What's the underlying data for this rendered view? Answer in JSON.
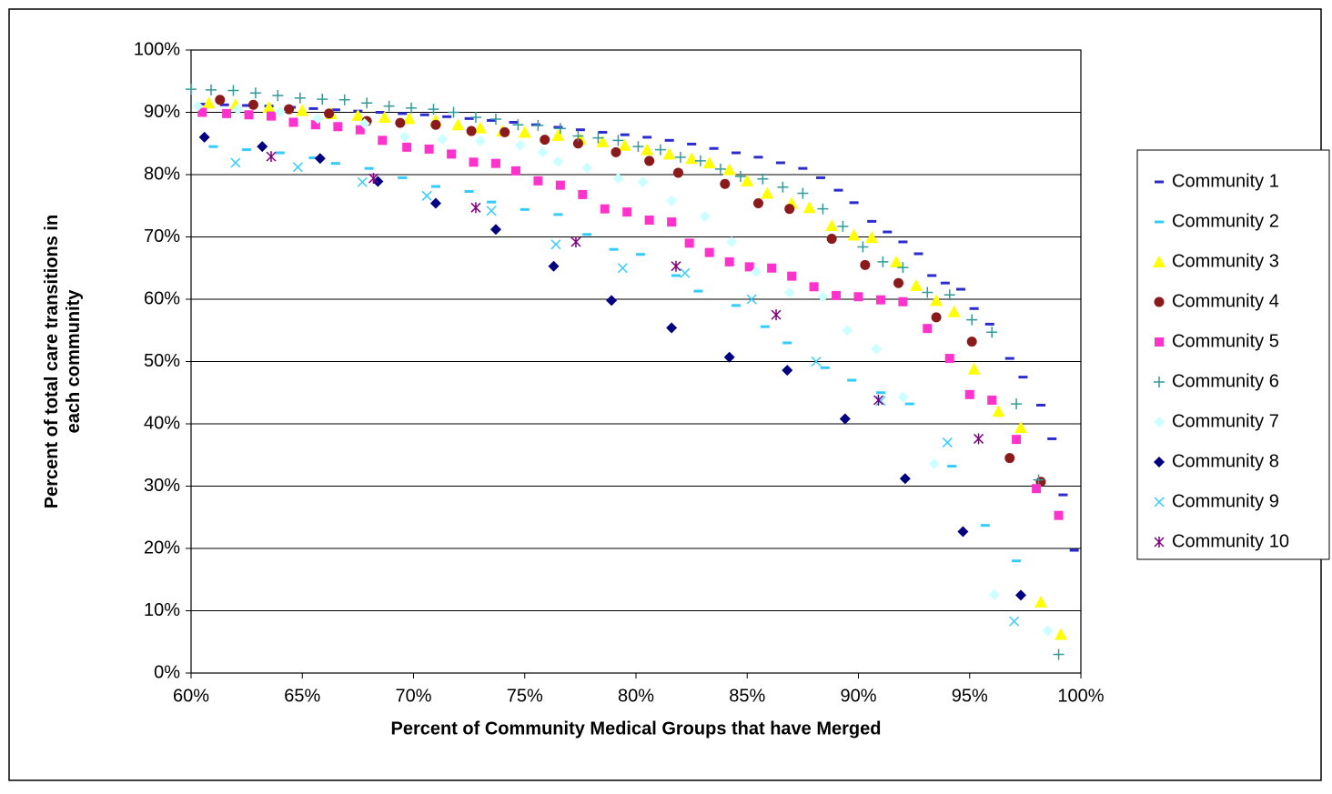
{
  "chart_data": {
    "type": "scatter",
    "x_label": "Percent of Community Medical Groups that have Merged",
    "y_label": "Percent of total care transitions in each community",
    "xlim": [
      60,
      100
    ],
    "ylim": [
      0,
      100
    ],
    "xticks": [
      {
        "value": 60,
        "label": "60%"
      },
      {
        "value": 65,
        "label": "65%"
      },
      {
        "value": 70,
        "label": "70%"
      },
      {
        "value": 75,
        "label": "75%"
      },
      {
        "value": 80,
        "label": "80%"
      },
      {
        "value": 85,
        "label": "85%"
      },
      {
        "value": 90,
        "label": "90%"
      },
      {
        "value": 95,
        "label": "95%"
      },
      {
        "value": 100,
        "label": "100%"
      }
    ],
    "yticks": [
      {
        "value": 0,
        "label": "0%"
      },
      {
        "value": 10,
        "label": "10%"
      },
      {
        "value": 20,
        "label": "20%"
      },
      {
        "value": 30,
        "label": "30%"
      },
      {
        "value": 40,
        "label": "40%"
      },
      {
        "value": 50,
        "label": "50%"
      },
      {
        "value": 60,
        "label": "60%"
      },
      {
        "value": 70,
        "label": "70%"
      },
      {
        "value": 80,
        "label": "80%"
      },
      {
        "value": 90,
        "label": "90%"
      },
      {
        "value": 100,
        "label": "100%"
      }
    ],
    "grid": true,
    "legend": "right",
    "series": [
      {
        "name": "Community 1",
        "color": "#2b2bd0",
        "marker": "dash",
        "x": [
          60.5,
          61.5,
          62.5,
          63.5,
          64.5,
          65.5,
          66.5,
          67.5,
          68.5,
          69.5,
          70.5,
          71.5,
          72.5,
          73.5,
          74.5,
          75.5,
          76.5,
          77.5,
          78.5,
          79.5,
          80.5,
          81.5,
          82.5,
          83.5,
          84.5,
          85.5,
          86.5,
          87.5,
          88.3,
          89.1,
          89.8,
          90.6,
          91.3,
          92,
          92.7,
          93.3,
          93.9,
          94.6,
          95.2,
          95.9,
          96.8,
          97.4,
          98.2,
          98.7,
          99.2,
          99.7
        ],
        "values": [
          91.3,
          91.2,
          91.1,
          91,
          90.8,
          90.6,
          90.4,
          90.2,
          90,
          89.8,
          89.6,
          89.3,
          89,
          88.7,
          88.4,
          88,
          87.6,
          87.2,
          86.8,
          86.4,
          86,
          85.5,
          84.9,
          84.2,
          83.5,
          82.8,
          81.9,
          81,
          79.5,
          77.5,
          75.5,
          72.5,
          70.8,
          69.2,
          67.3,
          63.8,
          62.6,
          61.6,
          58.5,
          56,
          50.5,
          47.5,
          43,
          37.6,
          28.6,
          19.7
        ]
      },
      {
        "name": "Community 2",
        "color": "#33ccff",
        "marker": "dash",
        "x": [
          61,
          62.5,
          64,
          65.5,
          66.5,
          68,
          69.5,
          71,
          72.5,
          73.5,
          75,
          76.5,
          77.8,
          79,
          80.2,
          81.8,
          82.8,
          84.5,
          85.8,
          86.8,
          88.5,
          89.7,
          91,
          92.3,
          94.2,
          95.7,
          97.1
        ],
        "values": [
          84.5,
          84,
          83.5,
          82.7,
          81.8,
          81,
          79.5,
          78.1,
          77.3,
          75.6,
          74.4,
          73.6,
          70.4,
          68,
          67.2,
          63.8,
          61.3,
          59,
          55.6,
          53,
          49,
          47,
          45,
          43.2,
          33.2,
          23.7,
          18
        ]
      },
      {
        "name": "Community 3",
        "color": "#ffff00",
        "marker": "triangle",
        "x": [
          60.8,
          62,
          63.5,
          65,
          66.3,
          67.5,
          68.7,
          69.8,
          71,
          72,
          73,
          74,
          75,
          76.5,
          77.5,
          78.5,
          79.5,
          80.5,
          81.5,
          82.5,
          83.3,
          84.2,
          85,
          85.9,
          87,
          87.8,
          88.8,
          89.8,
          90.6,
          91.7,
          92.6,
          93.5,
          94.3,
          95.2,
          96.3,
          97.3,
          98.2,
          99.1
        ],
        "values": [
          91.5,
          91.2,
          90.8,
          90.3,
          89.8,
          89.5,
          89.2,
          89,
          88.7,
          88,
          87.5,
          87,
          86.8,
          86.3,
          85.7,
          85.3,
          84.7,
          84,
          83.3,
          82.6,
          81.9,
          80.8,
          79,
          77,
          75.4,
          74.7,
          71.8,
          70.3,
          69.9,
          66,
          62.2,
          59.8,
          58,
          48.8,
          42,
          39.4,
          11.4,
          6.2
        ]
      },
      {
        "name": "Community 4",
        "color": "#8b1a1a",
        "marker": "circle",
        "x": [
          61.3,
          62.8,
          64.4,
          66.2,
          67.9,
          69.4,
          71,
          72.6,
          74.1,
          75.9,
          77.4,
          79.1,
          80.6,
          81.9,
          84,
          85.5,
          86.9,
          88.8,
          90.3,
          91.8,
          93.5,
          95.1,
          96.8,
          98.2
        ],
        "values": [
          92,
          91.2,
          90.5,
          89.8,
          88.6,
          88.3,
          88,
          87,
          86.8,
          85.6,
          85,
          83.6,
          82.2,
          80.3,
          78.5,
          75.4,
          74.5,
          69.7,
          65.5,
          62.6,
          57.1,
          53.2,
          34.5,
          30.7
        ]
      },
      {
        "name": "Community 5",
        "color": "#ff33cc",
        "marker": "square",
        "x": [
          60.5,
          61.6,
          62.6,
          63.6,
          64.6,
          65.6,
          66.6,
          67.6,
          68.6,
          69.7,
          70.7,
          71.7,
          72.7,
          73.7,
          74.6,
          75.6,
          76.6,
          77.6,
          78.6,
          79.6,
          80.6,
          81.6,
          82.4,
          83.3,
          84.2,
          85.1,
          86.1,
          87,
          88,
          89,
          90,
          91,
          92,
          93.1,
          94.1,
          95,
          96,
          97.1,
          98,
          99
        ],
        "values": [
          90,
          89.8,
          89.6,
          89.4,
          88.4,
          88,
          87.7,
          87.2,
          85.5,
          84.4,
          84.1,
          83.3,
          82,
          81.8,
          80.6,
          79,
          78.3,
          76.8,
          74.5,
          74,
          72.7,
          72.4,
          69,
          67.5,
          66,
          65.2,
          65,
          63.7,
          62,
          60.6,
          60.4,
          59.9,
          59.6,
          55.3,
          50.5,
          44.7,
          43.8,
          37.5,
          29.6,
          25.3
        ]
      },
      {
        "name": "Community 6",
        "color": "#339999",
        "marker": "plus",
        "x": [
          60,
          60.9,
          61.9,
          62.9,
          63.9,
          64.9,
          65.9,
          66.9,
          67.9,
          68.9,
          69.9,
          70.9,
          71.8,
          72.8,
          73.7,
          74.7,
          75.6,
          76.6,
          77.4,
          78.3,
          79.2,
          80.1,
          81.1,
          82,
          82.9,
          83.8,
          84.7,
          85.7,
          86.6,
          87.5,
          88.4,
          89.3,
          90.2,
          91.1,
          92,
          93.1,
          94.1,
          95.1,
          96,
          97.1,
          98.1,
          99
        ],
        "values": [
          93.7,
          93.6,
          93.5,
          93.1,
          92.7,
          92.3,
          92.1,
          92,
          91.5,
          91,
          90.7,
          90.5,
          90,
          89.2,
          88.9,
          88,
          87.9,
          87.4,
          86.2,
          85.9,
          85.5,
          84.5,
          84,
          82.8,
          82.2,
          80.9,
          79.7,
          79.3,
          78,
          77,
          74.5,
          71.7,
          68.4,
          66,
          65.1,
          61.1,
          60.7,
          56.7,
          54.7,
          43.2,
          31,
          3
        ]
      },
      {
        "name": "Community 7",
        "color": "#ccffff",
        "marker": "diamond",
        "x": [
          60.3,
          62.1,
          64,
          65.7,
          67.8,
          69.6,
          71.3,
          73,
          74.8,
          75.8,
          76.5,
          77.8,
          79.2,
          80.3,
          81.6,
          83.1,
          84.3,
          85.4,
          86.9,
          88.4,
          89.5,
          90.8,
          92,
          93.4,
          96.1,
          98.5
        ],
        "values": [
          91,
          90.5,
          90.1,
          89,
          88.2,
          86.1,
          85.7,
          85.4,
          84.7,
          83.6,
          82.1,
          81.1,
          79.4,
          78.8,
          75.8,
          73.3,
          69.2,
          64.4,
          61.1,
          60.4,
          55,
          52,
          44.3,
          33.6,
          12.6,
          6.8
        ]
      },
      {
        "name": "Community 8",
        "color": "#000080",
        "marker": "diamond",
        "x": [
          60.6,
          63.2,
          65.8,
          68.4,
          71,
          73.7,
          76.3,
          78.9,
          81.6,
          84.2,
          86.8,
          89.4,
          92.1,
          94.7,
          97.3
        ],
        "values": [
          86,
          84.5,
          82.6,
          78.9,
          75.4,
          71.2,
          65.3,
          59.8,
          55.4,
          50.7,
          48.6,
          40.8,
          31.2,
          22.7,
          12.5
        ]
      },
      {
        "name": "Community 9",
        "color": "#33ccff",
        "marker": "x",
        "x": [
          62,
          64.8,
          67.7,
          70.6,
          73.5,
          76.4,
          79.4,
          82.2,
          85.2,
          88.1,
          91,
          94,
          97
        ],
        "values": [
          81.9,
          81.2,
          78.8,
          76.6,
          74.2,
          68.8,
          65,
          64.2,
          60,
          50,
          43.7,
          37,
          8.3
        ]
      },
      {
        "name": "Community 10",
        "color": "#800080",
        "marker": "star",
        "x": [
          63.6,
          68.2,
          72.8,
          77.3,
          81.8,
          86.3,
          90.9,
          95.4
        ],
        "values": [
          82.9,
          79.4,
          74.7,
          69.2,
          65.3,
          57.5,
          43.8,
          37.6
        ]
      }
    ]
  }
}
